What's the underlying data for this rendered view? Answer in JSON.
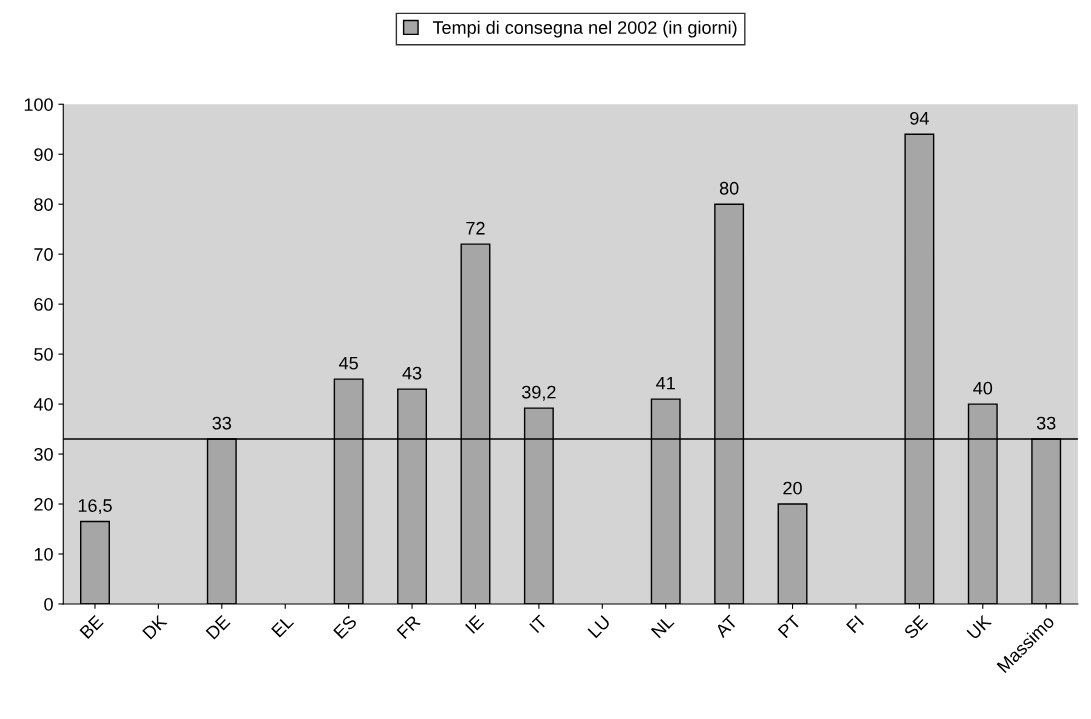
{
  "chart_data": {
    "type": "bar",
    "categories": [
      "BE",
      "DK",
      "DE",
      "EL",
      "ES",
      "FR",
      "IE",
      "IT",
      "LU",
      "NL",
      "AT",
      "PT",
      "FI",
      "SE",
      "UK",
      "Massimo"
    ],
    "series": [
      {
        "name": "Tempi di consegna nel 2002 (in giorni)",
        "color": "#a6a6a6",
        "values": [
          16.5,
          null,
          33,
          null,
          45,
          43,
          72,
          39.2,
          null,
          41,
          80,
          20,
          null,
          94,
          40,
          33
        ],
        "value_labels": [
          "16,5",
          null,
          "33",
          null,
          "45",
          "43",
          "72",
          "39,2",
          null,
          "41",
          "80",
          "20",
          null,
          "94",
          "40",
          "33"
        ]
      }
    ],
    "ylim": [
      0,
      100
    ],
    "yticks": [
      0,
      10,
      20,
      30,
      40,
      50,
      60,
      70,
      80,
      90,
      100
    ],
    "ref_lines": [
      {
        "axis": "y",
        "value": 33,
        "color": "#000000"
      }
    ],
    "grid": false,
    "legend": "top"
  }
}
